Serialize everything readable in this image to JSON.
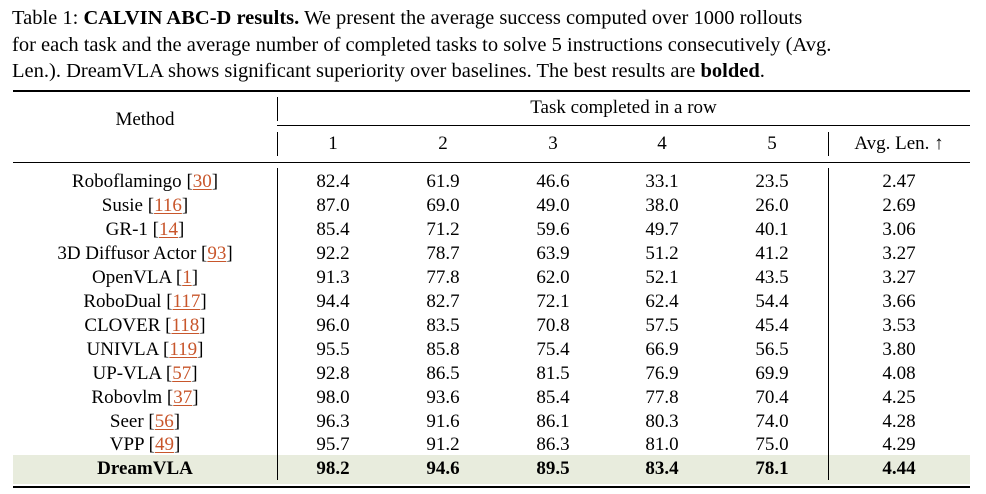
{
  "caption": {
    "prefix": "Table 1:",
    "title": "CALVIN ABC-D results.",
    "line1_rest": "We present the average success computed over 1000 rollouts",
    "line2": "for each task and the average number of completed tasks to solve 5 instructions consecutively (Avg.",
    "line3_pre": "Len.). DreamVLA shows significant superiority over baselines. The best results are",
    "line3_bold": "bolded",
    "line3_post": "."
  },
  "header": {
    "method": "Method",
    "group": "Task completed in a row",
    "columns": [
      "1",
      "2",
      "3",
      "4",
      "5"
    ],
    "avg_len": "Avg. Len. ↑"
  },
  "rows": [
    {
      "name": "Roboflamingo",
      "ref": "30",
      "values": [
        "82.4",
        "61.9",
        "46.6",
        "33.1",
        "23.5"
      ],
      "avg": "2.47"
    },
    {
      "name": "Susie",
      "ref": "116",
      "values": [
        "87.0",
        "69.0",
        "49.0",
        "38.0",
        "26.0"
      ],
      "avg": "2.69"
    },
    {
      "name": "GR-1",
      "ref": "14",
      "values": [
        "85.4",
        "71.2",
        "59.6",
        "49.7",
        "40.1"
      ],
      "avg": "3.06"
    },
    {
      "name": "3D Diffusor Actor",
      "ref": "93",
      "values": [
        "92.2",
        "78.7",
        "63.9",
        "51.2",
        "41.2"
      ],
      "avg": "3.27"
    },
    {
      "name": "OpenVLA",
      "ref": "1",
      "values": [
        "91.3",
        "77.8",
        "62.0",
        "52.1",
        "43.5"
      ],
      "avg": "3.27"
    },
    {
      "name": "RoboDual",
      "ref": "117",
      "values": [
        "94.4",
        "82.7",
        "72.1",
        "62.4",
        "54.4"
      ],
      "avg": "3.66"
    },
    {
      "name": "CLOVER",
      "ref": "118",
      "values": [
        "96.0",
        "83.5",
        "70.8",
        "57.5",
        "45.4"
      ],
      "avg": "3.53"
    },
    {
      "name": "UNIVLA",
      "ref": "119",
      "values": [
        "95.5",
        "85.8",
        "75.4",
        "66.9",
        "56.5"
      ],
      "avg": "3.80"
    },
    {
      "name": "UP-VLA",
      "ref": "57",
      "values": [
        "92.8",
        "86.5",
        "81.5",
        "76.9",
        "69.9"
      ],
      "avg": "4.08"
    },
    {
      "name": "Robovlm",
      "ref": "37",
      "values": [
        "98.0",
        "93.6",
        "85.4",
        "77.8",
        "70.4"
      ],
      "avg": "4.25"
    },
    {
      "name": "Seer",
      "ref": "56",
      "values": [
        "96.3",
        "91.6",
        "86.1",
        "80.3",
        "74.0"
      ],
      "avg": "4.28"
    },
    {
      "name": "VPP",
      "ref": "49",
      "values": [
        "95.7",
        "91.2",
        "86.3",
        "81.0",
        "75.0"
      ],
      "avg": "4.29"
    },
    {
      "name": "DreamVLA",
      "ref": "",
      "values": [
        "98.2",
        "94.6",
        "89.5",
        "83.4",
        "78.1"
      ],
      "avg": "4.44",
      "best": true
    }
  ],
  "colors": {
    "highlight": "#e8ecdd",
    "reference_link": "#c8562b"
  }
}
